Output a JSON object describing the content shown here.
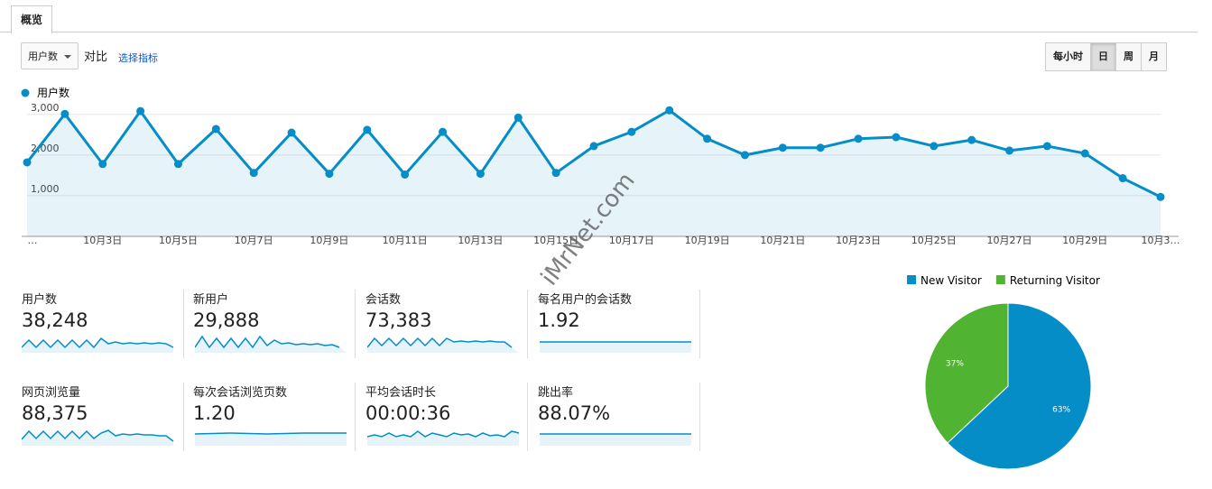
{
  "tabs": [
    "概览"
  ],
  "toolbar": {
    "metric_select": "用户数",
    "compare": "对比",
    "choose_metric": "选择指标",
    "granularity": [
      "每小时",
      "日",
      "周",
      "月"
    ]
  },
  "chart_data": [
    {
      "type": "line",
      "categories": [
        "…",
        null,
        "10月3日",
        null,
        "10月5日",
        null,
        "10月7日",
        null,
        "10月9日",
        null,
        "10月11日",
        null,
        "10月13日",
        null,
        "10月15日",
        null,
        "10月17日",
        null,
        "10月19日",
        null,
        "10月21日",
        null,
        "10月23日",
        null,
        "10月25日",
        null,
        "10月27日",
        null,
        "10月29日",
        null,
        "10月3…"
      ],
      "series": [
        {
          "name": "用户数",
          "color": "#058dc7",
          "values": [
            1820,
            3010,
            1780,
            3080,
            1780,
            2640,
            1560,
            2550,
            1540,
            2620,
            1520,
            2570,
            1540,
            2920,
            1560,
            2220,
            2570,
            3100,
            2400,
            2000,
            2180,
            2180,
            2400,
            2440,
            2220,
            2370,
            2110,
            2220,
            2040,
            1430,
            970
          ]
        }
      ],
      "ylim": [
        0,
        3150
      ],
      "yticks": [
        {
          "value": 1000,
          "label": "1,000"
        },
        {
          "value": 2000,
          "label": "2,000"
        },
        {
          "value": 3000,
          "label": "3,000"
        }
      ],
      "grid": true
    },
    {
      "type": "pie",
      "categories": [
        "New Visitor",
        "Returning Visitor"
      ],
      "values": [
        63,
        37
      ],
      "value_labels": [
        "63%",
        "37%"
      ],
      "colors": [
        "#058dc7",
        "#50b432"
      ],
      "legend": "top"
    }
  ],
  "metrics": [
    {
      "label": "用户数",
      "value": "38,248"
    },
    {
      "label": "新用户",
      "value": "29,888"
    },
    {
      "label": "会话数",
      "value": "73,383"
    },
    {
      "label": "每名用户的会话数",
      "value": "1.92"
    },
    {
      "label": "网页浏览量",
      "value": "88,375"
    },
    {
      "label": "每次会话浏览页数",
      "value": "1.20"
    },
    {
      "label": "平均会话时长",
      "value": "00:00:36"
    },
    {
      "label": "跳出率",
      "value": "88.07%"
    }
  ],
  "watermark": "iMrNet.com"
}
